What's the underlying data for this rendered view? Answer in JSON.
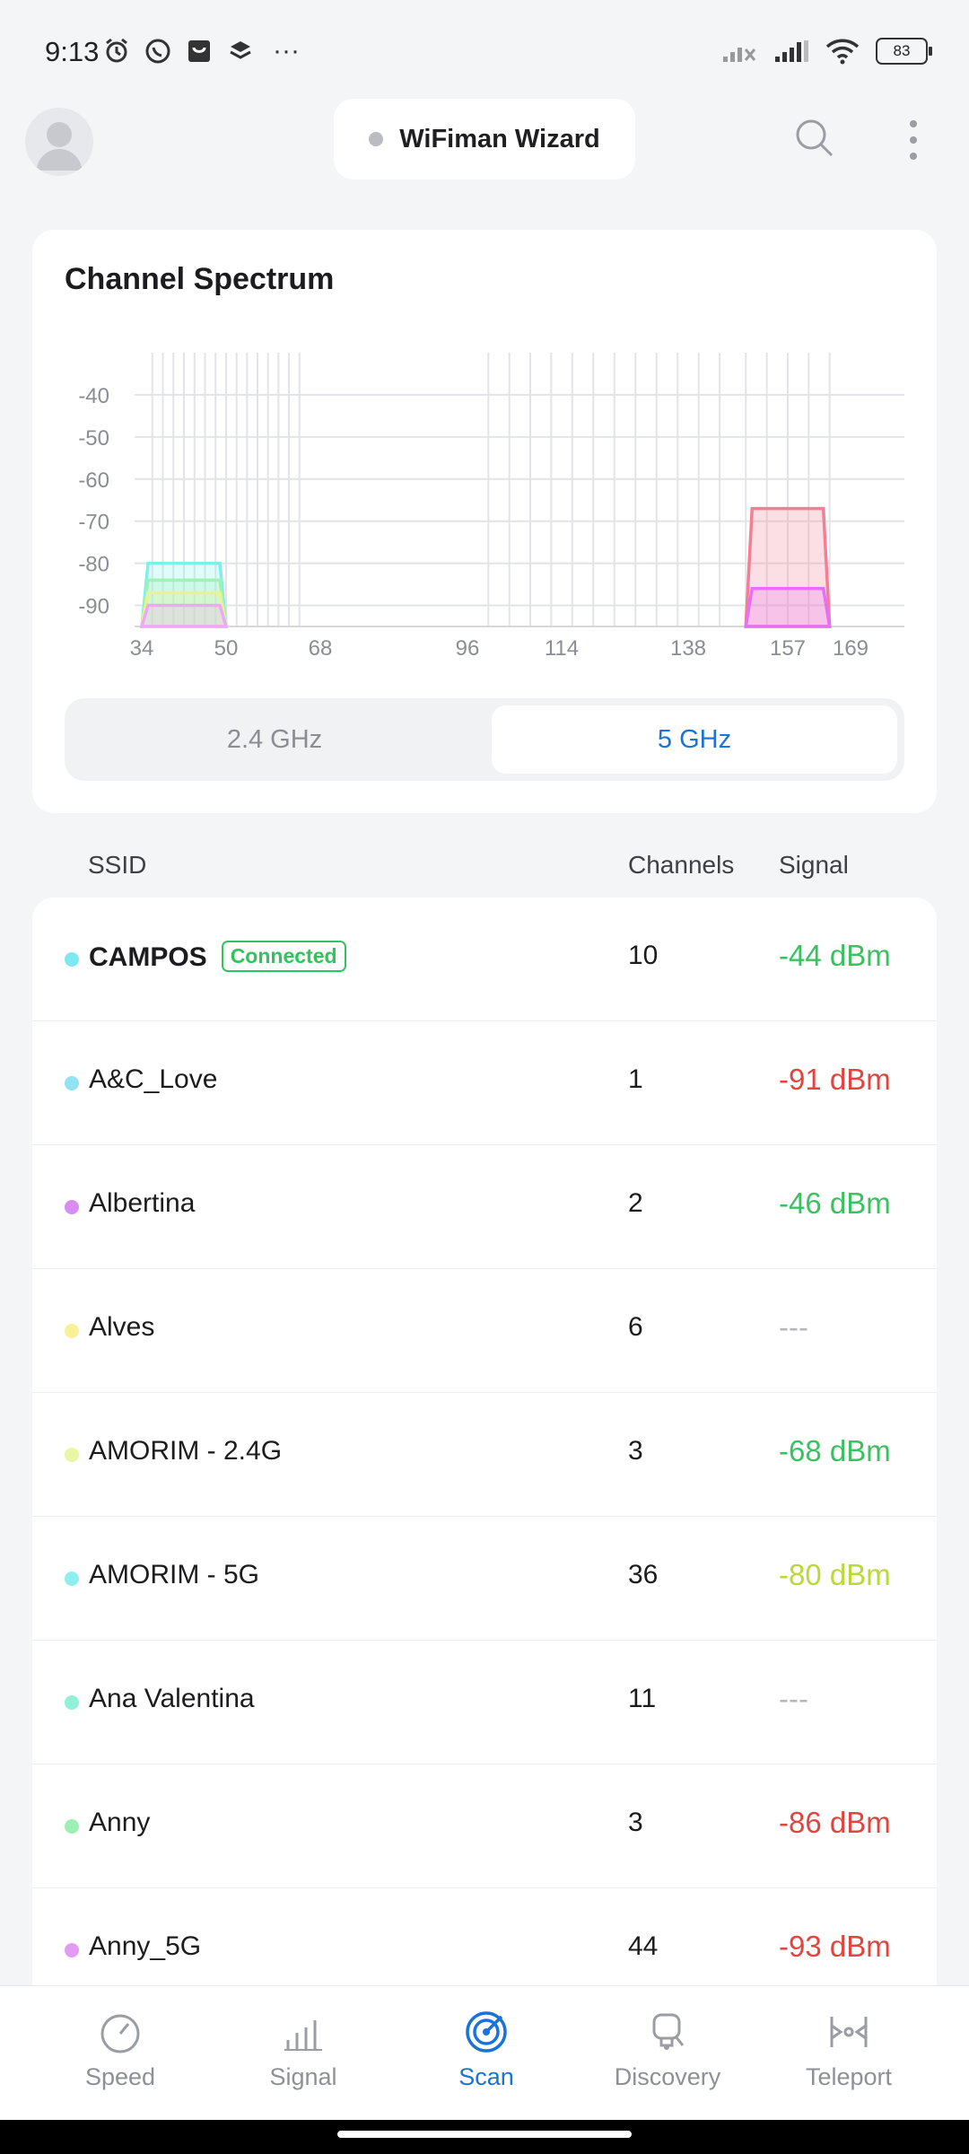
{
  "status_bar": {
    "time": "9:13",
    "more": "···",
    "battery": "83",
    "left_icons": [
      "alarm-icon",
      "whatsapp-icon",
      "shop-icon",
      "layers-icon"
    ],
    "right_icons": [
      "cellular-signal-no-service-icon",
      "cellular-signal-icon",
      "wifi-icon",
      "battery-icon"
    ]
  },
  "header": {
    "title": "WiFiman Wizard",
    "icons": [
      "avatar-icon",
      "search-icon",
      "more-vertical-icon"
    ]
  },
  "spectrum": {
    "title": "Channel Spectrum",
    "bands": [
      "2.4 GHz",
      "5 GHz"
    ],
    "selected_band": "5 GHz"
  },
  "chart_data": {
    "type": "area",
    "x_ticks": [
      "34",
      "50",
      "68",
      "96",
      "114",
      "138",
      "157",
      "169"
    ],
    "y_ticks": [
      "-40",
      "-50",
      "-60",
      "-70",
      "-80",
      "-90"
    ],
    "ylim": [
      -95,
      -30
    ],
    "grid": true,
    "series": [
      {
        "color": "#7ef0ea",
        "channel_start": 34,
        "channel_end": 50,
        "peak_dbm": -80
      },
      {
        "color": "#9df3b4",
        "channel_start": 34,
        "channel_end": 50,
        "peak_dbm": -84
      },
      {
        "color": "#e7f58c",
        "channel_start": 34,
        "channel_end": 50,
        "peak_dbm": -87
      },
      {
        "color": "#f2a6f8",
        "channel_start": 34,
        "channel_end": 50,
        "peak_dbm": -90
      },
      {
        "color": "#f47e93",
        "channel_start": 149,
        "channel_end": 165,
        "peak_dbm": -67
      },
      {
        "color": "#e86ef6",
        "channel_start": 149,
        "channel_end": 165,
        "peak_dbm": -86
      }
    ]
  },
  "table": {
    "headers": {
      "ssid": "SSID",
      "channels": "Channels",
      "signal": "Signal"
    },
    "connected_label": "Connected",
    "rows": [
      {
        "ssid": "CAMPOS",
        "channel": "10",
        "signal": "-44 dBm",
        "dot_color": "#7ee8f0",
        "signal_color": "#3cc161",
        "connected": true
      },
      {
        "ssid": "A&C_Love",
        "channel": "1",
        "signal": "-91 dBm",
        "dot_color": "#8fe3f3",
        "signal_color": "#e0463f"
      },
      {
        "ssid": "Albertina",
        "channel": "2",
        "signal": "-46 dBm",
        "dot_color": "#d98cf2",
        "signal_color": "#3cc161"
      },
      {
        "ssid": "Alves",
        "channel": "6",
        "signal": "---",
        "dot_color": "#f7f29a",
        "signal_color": "#b5b7bc"
      },
      {
        "ssid": "AMORIM - 2.4G",
        "channel": "3",
        "signal": "-68 dBm",
        "dot_color": "#e9f7a4",
        "signal_color": "#3cc161"
      },
      {
        "ssid": "AMORIM - 5G",
        "channel": "36",
        "signal": "-80 dBm",
        "dot_color": "#8eefee",
        "signal_color": "#b9d93a"
      },
      {
        "ssid": "Ana Valentina",
        "channel": "11",
        "signal": "---",
        "dot_color": "#8ef1d8",
        "signal_color": "#b5b7bc"
      },
      {
        "ssid": "Anny",
        "channel": "3",
        "signal": "-86 dBm",
        "dot_color": "#9bf0b2",
        "signal_color": "#e0463f"
      },
      {
        "ssid": "Anny_5G",
        "channel": "44",
        "signal": "-93 dBm",
        "dot_color": "#e39af2",
        "signal_color": "#e0463f"
      }
    ]
  },
  "bottom_nav": {
    "items": [
      {
        "label": "Speed",
        "icon": "speedometer-icon"
      },
      {
        "label": "Signal",
        "icon": "signal-bars-icon"
      },
      {
        "label": "Scan",
        "icon": "radar-icon"
      },
      {
        "label": "Discovery",
        "icon": "device-discovery-icon"
      },
      {
        "label": "Teleport",
        "icon": "teleport-icon"
      }
    ],
    "active": "Scan"
  }
}
